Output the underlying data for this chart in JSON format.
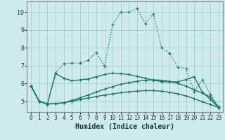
{
  "xlabel": "Humidex (Indice chaleur)",
  "background_color": "#ceeaea",
  "grid_color": "#aed4d4",
  "line_color": "#1a7a6a",
  "xlim": [
    -0.5,
    23.5
  ],
  "ylim": [
    4.4,
    10.6
  ],
  "yticks": [
    5,
    6,
    7,
    8,
    9,
    10
  ],
  "xticks": [
    0,
    1,
    2,
    3,
    4,
    5,
    6,
    7,
    8,
    9,
    10,
    11,
    12,
    13,
    14,
    15,
    16,
    17,
    18,
    19,
    20,
    21,
    22,
    23
  ],
  "series": [
    {
      "y": [
        5.85,
        5.0,
        4.85,
        6.6,
        7.1,
        7.15,
        7.15,
        7.3,
        7.75,
        6.95,
        9.3,
        10.0,
        10.0,
        10.2,
        9.35,
        9.9,
        8.0,
        7.7,
        6.9,
        6.85,
        5.55,
        6.2,
        5.4,
        4.7
      ],
      "linestyle": ":",
      "linewidth": 1.0
    },
    {
      "y": [
        5.85,
        5.0,
        4.85,
        4.87,
        4.92,
        5.0,
        5.1,
        5.18,
        5.27,
        5.35,
        5.42,
        5.48,
        5.53,
        5.57,
        5.6,
        5.6,
        5.57,
        5.5,
        5.42,
        5.3,
        5.15,
        4.97,
        4.82,
        4.65
      ],
      "linestyle": "-",
      "linewidth": 1.0
    },
    {
      "y": [
        5.85,
        5.0,
        4.85,
        6.55,
        6.3,
        6.15,
        6.2,
        6.25,
        6.38,
        6.5,
        6.58,
        6.55,
        6.5,
        6.4,
        6.3,
        6.18,
        6.1,
        6.08,
        6.1,
        6.22,
        6.38,
        5.5,
        5.1,
        4.65
      ],
      "linestyle": "-",
      "linewidth": 1.0
    },
    {
      "y": [
        5.85,
        5.0,
        4.85,
        4.87,
        4.92,
        5.05,
        5.2,
        5.35,
        5.52,
        5.68,
        5.82,
        5.95,
        6.05,
        6.12,
        6.18,
        6.2,
        6.18,
        6.12,
        6.0,
        5.85,
        5.65,
        5.45,
        5.25,
        4.65
      ],
      "linestyle": "-",
      "linewidth": 1.0
    }
  ]
}
